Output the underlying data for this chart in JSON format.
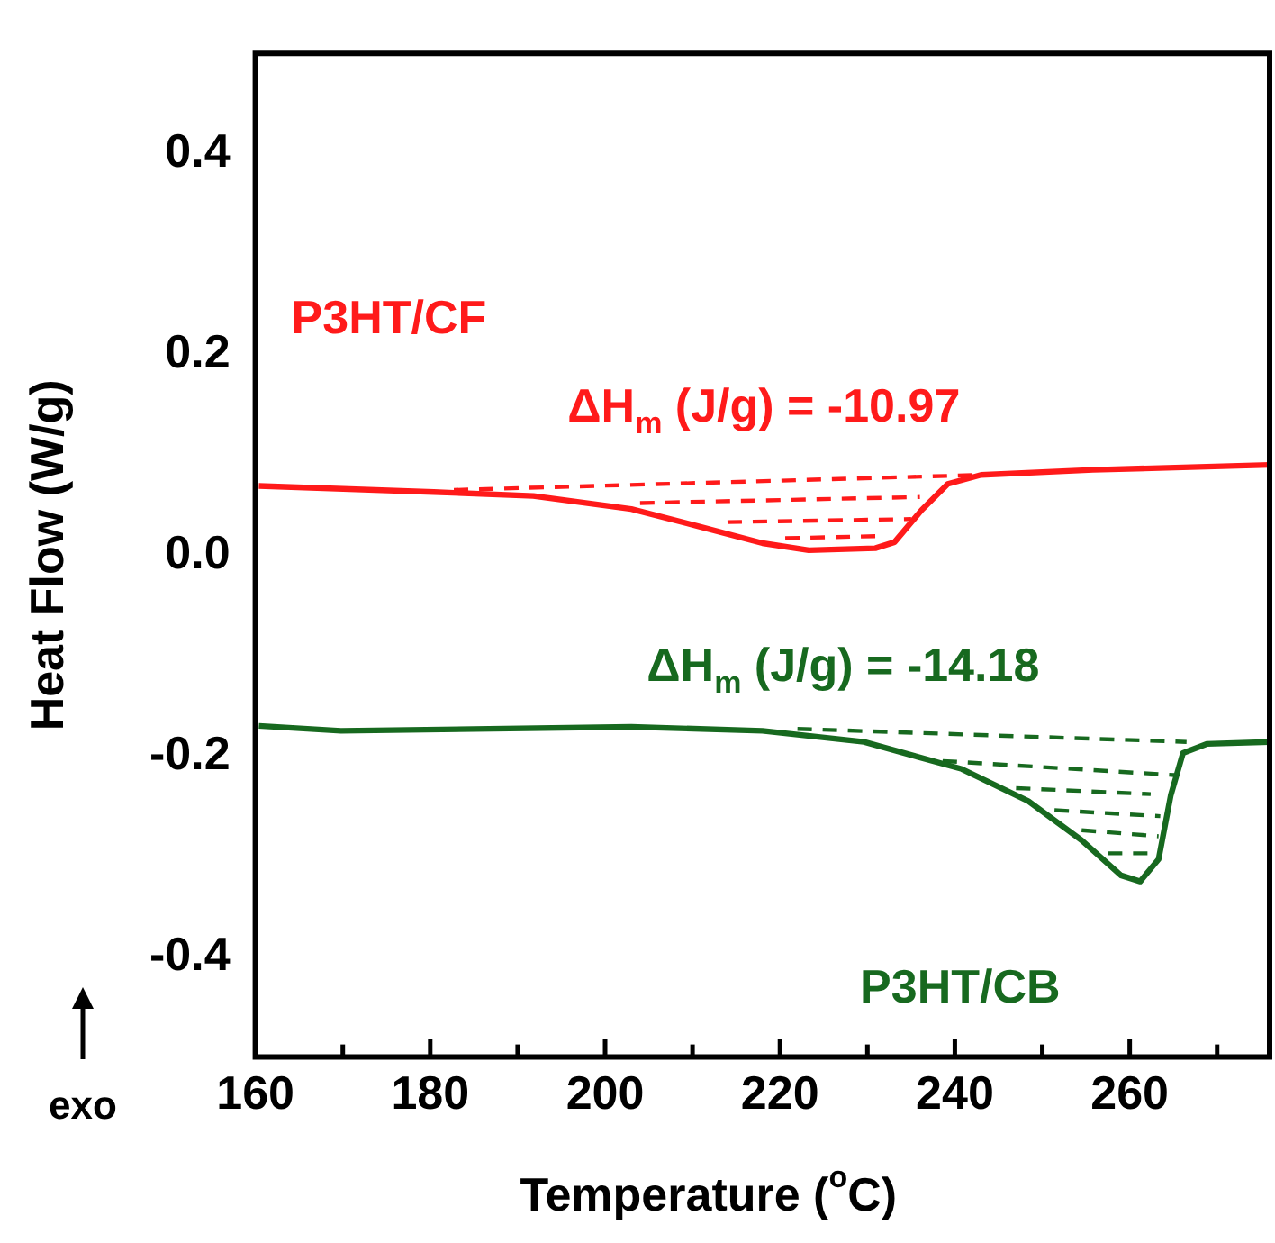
{
  "chart_data": {
    "type": "line",
    "xlabel": "Temperature ($^{o}$C)",
    "ylabel": "Heat Flow (W/g)",
    "xlim": [
      160,
      276
    ],
    "ylim": [
      -0.5,
      0.5
    ],
    "xticks": [
      160,
      {
        "value": 170,
        "label": null
      },
      180,
      {
        "value": 190,
        "label": null
      },
      200,
      {
        "value": 210,
        "label": null
      },
      220,
      {
        "value": 230,
        "label": null
      },
      240,
      {
        "value": 250,
        "label": null
      },
      260,
      {
        "value": 270,
        "label": null
      }
    ],
    "yticks": [
      -0.4,
      -0.2,
      {
        "value": 0,
        "label": "0.0"
      },
      0.2,
      0.4
    ],
    "grid": false,
    "legend": false,
    "series": [
      {
        "name": "P3HT/CF",
        "color": "#ff1a1a",
        "line_style": "solid",
        "x": [
          160.4,
          180.4,
          191.8,
          203,
          210.6,
          218,
          223.3,
          230.9,
          233.1,
          236.2,
          239.2,
          243,
          255.8,
          276
        ],
        "values": [
          0.069,
          0.063,
          0.059,
          0.046,
          0.029,
          0.012,
          0.005,
          0.007,
          0.013,
          0.045,
          0.071,
          0.08,
          0.085,
          0.09
        ]
      },
      {
        "name": "P3HT/CB",
        "color": "#17691f",
        "line_style": "solid",
        "x": [
          160.4,
          169.8,
          203,
          218,
          229.6,
          240.8,
          248.4,
          254.5,
          259,
          261.2,
          263.3,
          264.7,
          266.1,
          268.8,
          276
        ],
        "values": [
          -0.17,
          -0.175,
          -0.171,
          -0.175,
          -0.186,
          -0.213,
          -0.245,
          -0.284,
          -0.319,
          -0.325,
          -0.303,
          -0.239,
          -0.197,
          -0.188,
          -0.186
        ]
      },
      {
        "color": "#ff1a1a",
        "line_style": "dashed",
        "x": [
          182.7,
          243
        ],
        "values": [
          0.065,
          0.08
        ]
      },
      {
        "color": "#ff1a1a",
        "line_style": "dashed",
        "x": [
          204,
          236
        ],
        "values": [
          0.052,
          0.058
        ]
      },
      {
        "color": "#ff1a1a",
        "line_style": "dashed",
        "x": [
          214,
          235
        ],
        "values": [
          0.033,
          0.036
        ]
      },
      {
        "color": "#ff1a1a",
        "line_style": "dashed",
        "x": [
          220.6,
          231
        ],
        "values": [
          0.017,
          0.019
        ]
      },
      {
        "color": "#17691f",
        "line_style": "dashed",
        "x": [
          222,
          266.5
        ],
        "values": [
          -0.173,
          -0.186
        ]
      },
      {
        "color": "#17691f",
        "line_style": "dashed",
        "x": [
          238.6,
          265.1
        ],
        "values": [
          -0.205,
          -0.219
        ]
      },
      {
        "color": "#17691f",
        "line_style": "dashed",
        "x": [
          247,
          262.4
        ],
        "values": [
          -0.232,
          -0.238
        ]
      },
      {
        "color": "#17691f",
        "line_style": "dashed",
        "x": [
          251.4,
          263.5
        ],
        "values": [
          -0.254,
          -0.26
        ]
      },
      {
        "color": "#17691f",
        "line_style": "dashed",
        "x": [
          254.5,
          263.3
        ],
        "values": [
          -0.274,
          -0.28
        ]
      },
      {
        "color": "#17691f",
        "line_style": "dashed",
        "x": [
          257.5,
          263.3
        ],
        "values": [
          -0.297,
          -0.297
        ]
      }
    ],
    "annotations": [
      "ΔH$_{m}$ (J/g) = -10.97",
      "ΔH$_{m}$ (J/g) = -14.18",
      "exo"
    ]
  }
}
